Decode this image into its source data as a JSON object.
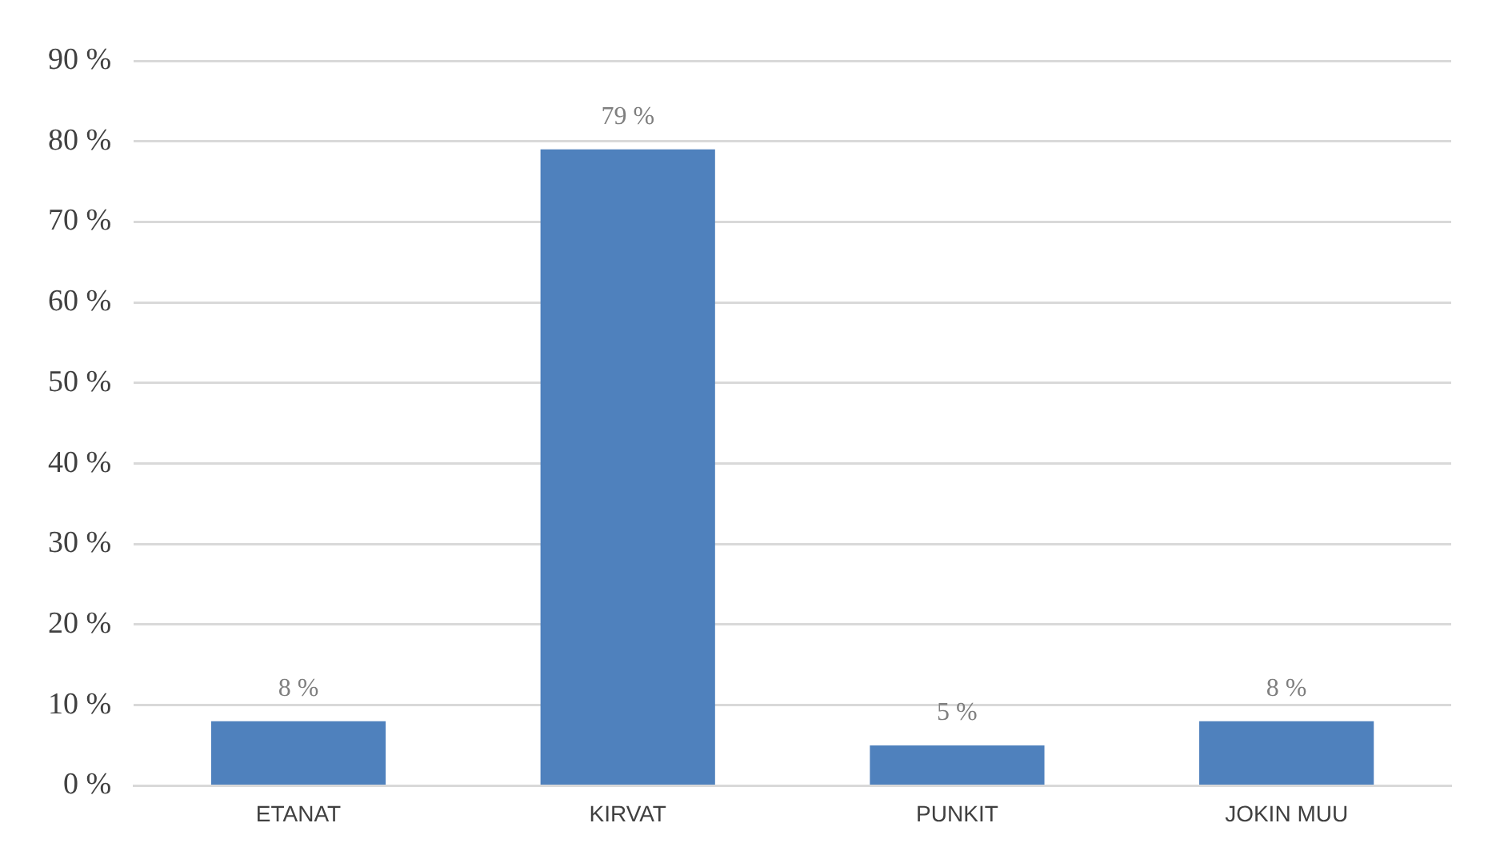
{
  "chart_data": {
    "type": "bar",
    "categories": [
      "ETANAT",
      "KIRVAT",
      "PUNKIT",
      "JOKIN MUU"
    ],
    "values": [
      8,
      79,
      5,
      8
    ],
    "value_labels": [
      "8 %",
      "79 %",
      "5 %",
      "8 %"
    ],
    "color": "#4f81bd",
    "ylim": [
      0,
      90
    ],
    "yticks": [
      {
        "value": 0,
        "label": "0 %"
      },
      {
        "value": 10,
        "label": "10 %"
      },
      {
        "value": 20,
        "label": "20 %"
      },
      {
        "value": 30,
        "label": "30 %"
      },
      {
        "value": 40,
        "label": "40 %"
      },
      {
        "value": 50,
        "label": "50 %"
      },
      {
        "value": 60,
        "label": "60 %"
      },
      {
        "value": 70,
        "label": "70 %"
      },
      {
        "value": 80,
        "label": "80 %"
      },
      {
        "value": 90,
        "label": "90 %"
      }
    ],
    "grid": "y"
  }
}
